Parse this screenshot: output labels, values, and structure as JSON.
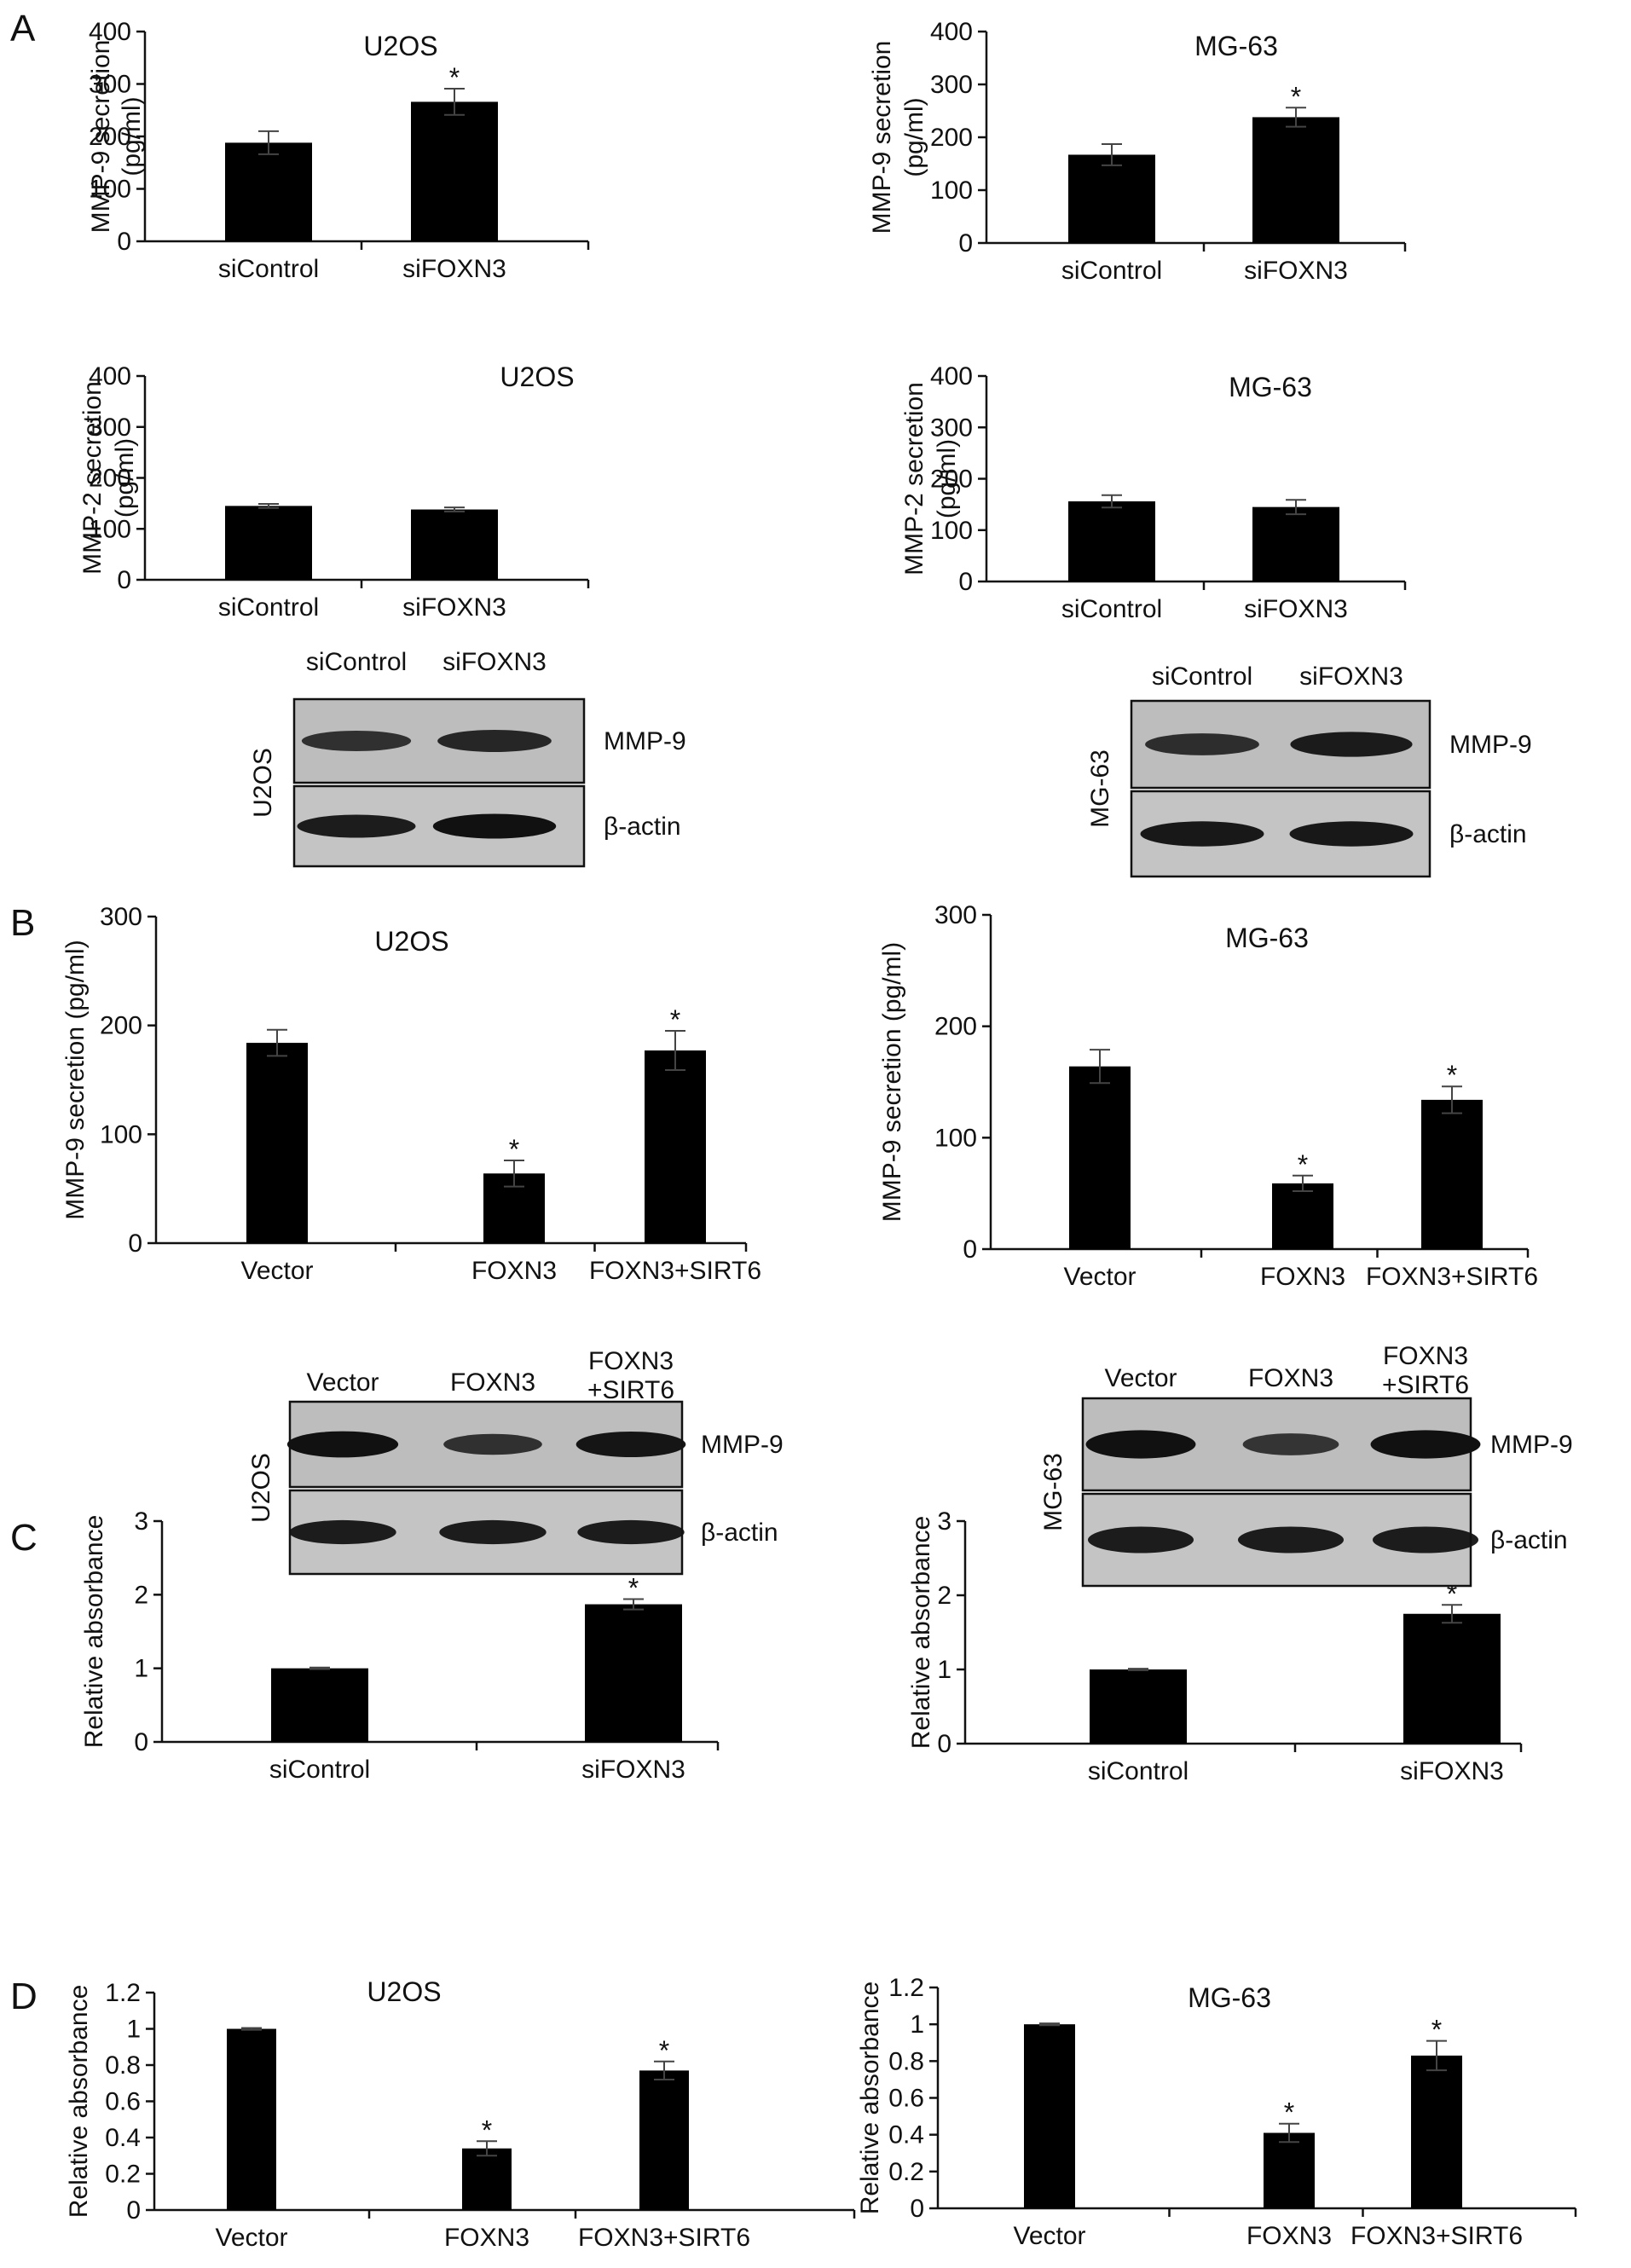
{
  "panels": {
    "A": "A",
    "B": "B",
    "C": "C",
    "D": "D"
  },
  "star": "*",
  "chart_data": [
    {
      "id": "A-1",
      "panel": "A",
      "type": "bar",
      "title": "U2OS",
      "ylabel": "MMP-9 secretion (pg/ml)",
      "ylim": [
        0,
        400
      ],
      "yticks": [
        "0",
        "100",
        "200",
        "300",
        "400"
      ],
      "categories": [
        "siControl",
        "siFOXN3"
      ],
      "values": [
        188,
        266
      ],
      "errors": [
        22,
        25
      ],
      "significant": [
        false,
        true
      ],
      "grid": false
    },
    {
      "id": "A-2",
      "panel": "A",
      "type": "bar",
      "title": "MG-63",
      "ylabel": "MMP-9 secretion (pg/ml)",
      "ylim": [
        0,
        400
      ],
      "yticks": [
        "0",
        "100",
        "200",
        "300",
        "400"
      ],
      "categories": [
        "siControl",
        "siFOXN3"
      ],
      "values": [
        167,
        238
      ],
      "errors": [
        20,
        18
      ],
      "significant": [
        false,
        true
      ],
      "grid": false
    },
    {
      "id": "A-3",
      "panel": "A",
      "type": "bar",
      "title": "U2OS",
      "ylabel": "MMP-2 secretion (pg/ml)",
      "ylim": [
        0,
        400
      ],
      "yticks": [
        "0",
        "100",
        "200",
        "300",
        "400"
      ],
      "categories": [
        "siControl",
        "siFOXN3"
      ],
      "values": [
        145,
        138
      ],
      "errors": [
        4,
        4
      ],
      "significant": [
        false,
        false
      ],
      "grid": false
    },
    {
      "id": "A-4",
      "panel": "A",
      "type": "bar",
      "title": "MG-63",
      "ylabel": "MMP-2 secretion (pg/ml)",
      "ylim": [
        0,
        400
      ],
      "yticks": [
        "0",
        "100",
        "200",
        "300",
        "400"
      ],
      "categories": [
        "siControl",
        "siFOXN3"
      ],
      "values": [
        156,
        145
      ],
      "errors": [
        12,
        14
      ],
      "significant": [
        false,
        false
      ],
      "grid": false
    },
    {
      "id": "B-1",
      "panel": "B",
      "type": "bar",
      "title": "U2OS",
      "ylabel": "MMP-9 secretion (pg/ml)",
      "ylim": [
        0,
        300
      ],
      "yticks": [
        "0",
        "100",
        "200",
        "300"
      ],
      "categories": [
        "Vector",
        "FOXN3",
        "FOXN3+SIRT6"
      ],
      "values": [
        184,
        64,
        177
      ],
      "errors": [
        12,
        12,
        18
      ],
      "significant": [
        false,
        true,
        true
      ],
      "grid": false
    },
    {
      "id": "B-2",
      "panel": "B",
      "type": "bar",
      "title": "MG-63",
      "ylabel": "MMP-9 secretion (pg/ml)",
      "ylim": [
        0,
        300
      ],
      "yticks": [
        "0",
        "100",
        "200",
        "300"
      ],
      "categories": [
        "Vector",
        "FOXN3",
        "FOXN3+SIRT6"
      ],
      "values": [
        164,
        59,
        134
      ],
      "errors": [
        15,
        7,
        12
      ],
      "significant": [
        false,
        true,
        true
      ],
      "grid": false
    },
    {
      "id": "C-1",
      "panel": "C",
      "type": "bar",
      "title": "U2OS",
      "ylabel": "Relative absorbance",
      "ylim": [
        0,
        3
      ],
      "yticks": [
        "0",
        "1",
        "2",
        "3"
      ],
      "categories": [
        "siControl",
        "siFOXN3"
      ],
      "values": [
        1.0,
        1.87
      ],
      "errors": [
        0.01,
        0.07
      ],
      "significant": [
        false,
        true
      ],
      "grid": false
    },
    {
      "id": "C-2",
      "panel": "C",
      "type": "bar",
      "title": "MG-63",
      "ylabel": "Relative absorbance",
      "ylim": [
        0,
        3
      ],
      "yticks": [
        "0",
        "1",
        "2",
        "3"
      ],
      "categories": [
        "siControl",
        "siFOXN3"
      ],
      "values": [
        1.0,
        1.75
      ],
      "errors": [
        0.01,
        0.12
      ],
      "significant": [
        false,
        true
      ],
      "grid": false
    },
    {
      "id": "D-1",
      "panel": "D",
      "type": "bar",
      "title": "U2OS",
      "ylabel": "Relative absorbance",
      "ylim": [
        0,
        1.2
      ],
      "yticks": [
        "0",
        "0.2",
        "0.4",
        "0.6",
        "0.8",
        "1",
        "1.2"
      ],
      "categories": [
        "Vector",
        "FOXN3",
        "FOXN3+SIRT6"
      ],
      "values": [
        1.0,
        0.34,
        0.77
      ],
      "errors": [
        0.005,
        0.04,
        0.05
      ],
      "significant": [
        false,
        true,
        true
      ],
      "grid": false
    },
    {
      "id": "D-2",
      "panel": "D",
      "type": "bar",
      "title": "MG-63",
      "ylabel": "Relative absorbance",
      "ylim": [
        0,
        1.2
      ],
      "yticks": [
        "0",
        "0.2",
        "0.4",
        "0.6",
        "0.8",
        "1",
        "1.2"
      ],
      "categories": [
        "Vector",
        "FOXN3",
        "FOXN3+SIRT6"
      ],
      "values": [
        1.0,
        0.41,
        0.83
      ],
      "errors": [
        0.005,
        0.05,
        0.08
      ],
      "significant": [
        false,
        true,
        true
      ],
      "grid": false
    }
  ],
  "blots": [
    {
      "id": "blot-A-U2OS",
      "cell_line": "U2OS",
      "lanes": [
        "siControl",
        "siFOXN3"
      ],
      "rows": [
        "MMP-9",
        "β-actin"
      ]
    },
    {
      "id": "blot-A-MG63",
      "cell_line": "MG-63",
      "lanes": [
        "siControl",
        "siFOXN3"
      ],
      "rows": [
        "MMP-9",
        "β-actin"
      ]
    },
    {
      "id": "blot-B-U2OS",
      "cell_line": "U2OS",
      "lanes": [
        "Vector",
        "FOXN3",
        "FOXN3\n+SIRT6"
      ],
      "rows": [
        "MMP-9",
        "β-actin"
      ]
    },
    {
      "id": "blot-B-MG63",
      "cell_line": "MG-63",
      "lanes": [
        "Vector",
        "FOXN3",
        "FOXN3\n+SIRT6"
      ],
      "rows": [
        "MMP-9",
        "β-actin"
      ]
    }
  ]
}
